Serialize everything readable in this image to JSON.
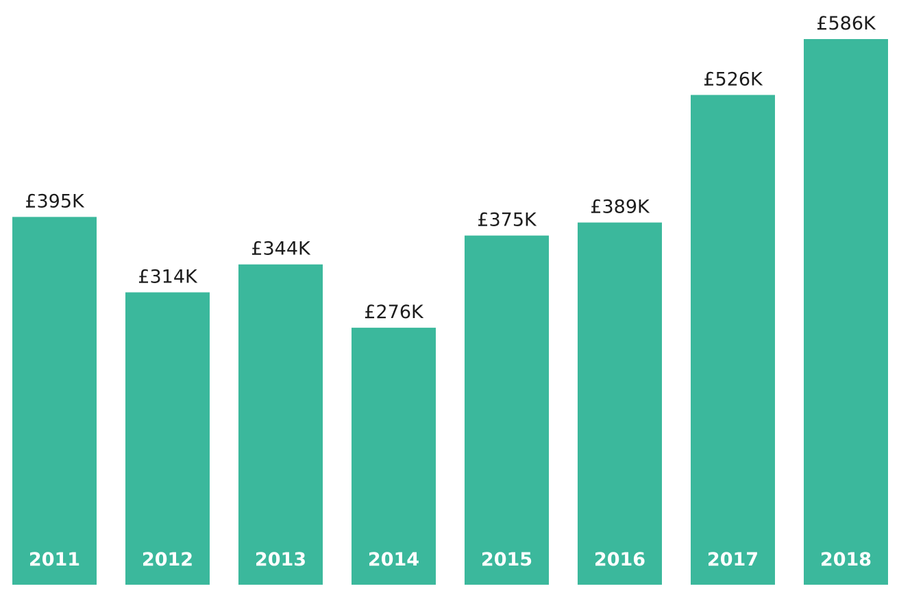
{
  "chart_data": {
    "type": "bar",
    "categories": [
      "2011",
      "2012",
      "2013",
      "2014",
      "2015",
      "2016",
      "2017",
      "2018"
    ],
    "values": [
      395,
      314,
      344,
      276,
      375,
      389,
      526,
      586
    ],
    "value_labels": [
      "£395K",
      "£314K",
      "£344K",
      "£276K",
      "£375K",
      "£389K",
      "£526K",
      "£586K"
    ],
    "unit": "£K",
    "title": "",
    "xlabel": "",
    "ylabel": "",
    "ylim": [
      0,
      586
    ],
    "grid": false,
    "legend": "none",
    "bar_color": "#3bb89c",
    "category_label_color": "#ffffff",
    "value_label_color": "#1c1c1c"
  }
}
